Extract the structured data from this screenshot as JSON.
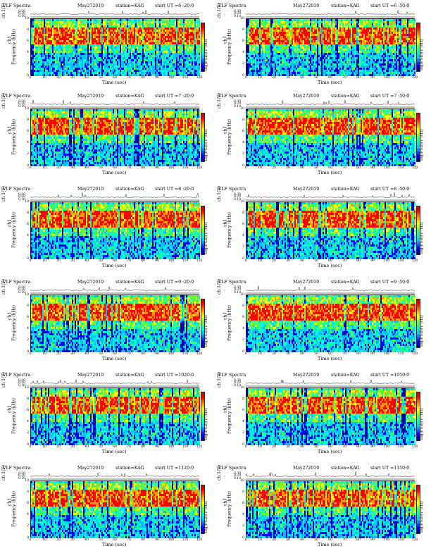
{
  "panel_common": {
    "title": "VLF Spectra",
    "date": "May272010",
    "station": "station=KAG",
    "ch_label": "ch 1(V)",
    "ylabel": "Frequency (kHz)",
    "ylabel_prefix": "ch1",
    "xlabel": "Time (sec)",
    "colorbar_label": "log(PSD)(V²/Hz)",
    "trace_ticks": [
      "0.30",
      "0.20",
      "0.10"
    ]
  },
  "panels": [
    {
      "start": "start  UT =6 :20:0"
    },
    {
      "start": "start  UT =6 :50:0"
    },
    {
      "start": "start  UT =7 :20:0"
    },
    {
      "start": "start  UT =7 :50:0"
    },
    {
      "start": "start  UT =8 :20:0"
    },
    {
      "start": "start  UT =8 :50:0"
    },
    {
      "start": "start  UT =9 :20:0"
    },
    {
      "start": "start  UT =9 :50:0"
    },
    {
      "start": "start  UT =1020:0"
    },
    {
      "start": "start  UT =1050:0"
    },
    {
      "start": "start  UT =1120:0"
    },
    {
      "start": "start  UT =1150:0"
    }
  ],
  "chart_data": {
    "type": "heatmap",
    "x": {
      "label": "Time (sec)",
      "range": [
        0,
        120
      ],
      "ticks": [
        "0",
        "10",
        "20",
        "30",
        "40",
        "50",
        "60",
        "70",
        "80",
        "90",
        "100",
        "110",
        "120"
      ]
    },
    "y": {
      "label": "Frequency (kHz)",
      "range": [
        0,
        10
      ],
      "ticks": [
        "0",
        "2",
        "4",
        "6",
        "8",
        "10"
      ]
    },
    "colorscale": [
      "#00008b",
      "#0000ff",
      "#00bfff",
      "#00ffcc",
      "#66ff33",
      "#ffff00",
      "#ff9900",
      "#ff0000"
    ],
    "colorbar_ticks": [
      "-",
      "-"
    ],
    "spectral_profile_by_freq_band": [
      {
        "band_kHz": [
          0,
          4
        ],
        "level": 0.35
      },
      {
        "band_kHz": [
          4,
          5.5
        ],
        "level": 0.5
      },
      {
        "band_kHz": [
          5.5,
          8.5
        ],
        "level": 0.9
      },
      {
        "band_kHz": [
          8.5,
          9.5
        ],
        "level": 0.6
      },
      {
        "band_kHz": [
          9.5,
          10
        ],
        "level": 0.45
      }
    ]
  }
}
